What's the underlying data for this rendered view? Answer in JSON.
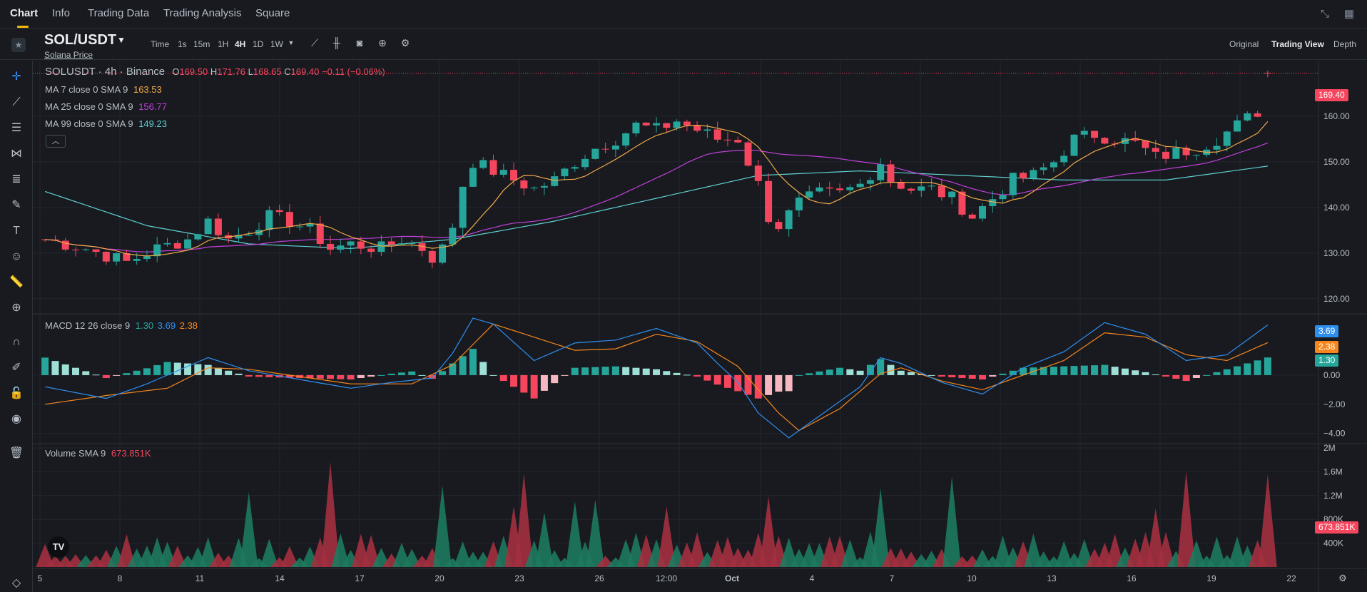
{
  "nav": {
    "tabs": [
      {
        "label": "Chart",
        "active": true
      },
      {
        "label": "Info",
        "active": false
      },
      {
        "label": "Trading Data",
        "active": false
      },
      {
        "label": "Trading Analysis",
        "active": false
      },
      {
        "label": "Square",
        "active": false
      }
    ],
    "icons": [
      "collapse-icon",
      "grid-layout-icon"
    ]
  },
  "header": {
    "pair": "SOL/USDT",
    "subtitle": "Solana Price",
    "timeframes": [
      {
        "label": "Time",
        "active": false
      },
      {
        "label": "1s",
        "active": false
      },
      {
        "label": "15m",
        "active": false
      },
      {
        "label": "1H",
        "active": false
      },
      {
        "label": "4H",
        "active": true
      },
      {
        "label": "1D",
        "active": false
      },
      {
        "label": "1W",
        "active": false
      }
    ],
    "views": [
      {
        "label": "Original",
        "active": false
      },
      {
        "label": "Trading View",
        "active": true
      },
      {
        "label": "Depth",
        "active": false
      }
    ]
  },
  "legend": {
    "symbol_line": "SOLUSDT · 4h · Binance",
    "ohlc": [
      {
        "key": "O",
        "value": "169.50"
      },
      {
        "key": "H",
        "value": "171.76"
      },
      {
        "key": "L",
        "value": "168.65"
      },
      {
        "key": "C",
        "value": "169.40"
      }
    ],
    "change": "−0.11 (−0.06%)",
    "ma": [
      {
        "label": "MA 7 close 0 SMA 9",
        "value": "163.53",
        "color": "#f0a848"
      },
      {
        "label": "MA 25 close 0 SMA 9",
        "value": "156.77",
        "color": "#c040d8"
      },
      {
        "label": "MA 99 close 0 SMA 9",
        "value": "149.23",
        "color": "#5fd0d0"
      }
    ],
    "macd_label": "MACD 12 26 close 9",
    "macd_values": [
      {
        "value": "1.30",
        "color": "#26a69a"
      },
      {
        "value": "3.69",
        "color": "#2f8ff0"
      },
      {
        "value": "2.38",
        "color": "#f7861c"
      }
    ],
    "volume_label": "Volume SMA 9",
    "volume_value": "673.851K"
  },
  "axes": {
    "price_ticks": [
      "160.00",
      "150.00",
      "140.00",
      "130.00",
      "120.00"
    ],
    "macd_ticks": [
      "0.00",
      "−2.00",
      "−4.00"
    ],
    "volume_ticks": [
      "2M",
      "1.6M",
      "1.2M",
      "800K",
      "400K"
    ],
    "time_ticks": [
      "5",
      "8",
      "11",
      "14",
      "17",
      "20",
      "23",
      "26",
      "12:00",
      "Oct",
      "4",
      "7",
      "10",
      "13",
      "16",
      "19",
      "22"
    ]
  },
  "badges": {
    "price": "169.40",
    "macd_signal": "3.69",
    "macd_line": "2.38",
    "macd_hist": "1.30",
    "volume": "673.851K"
  },
  "colors": {
    "up": "#26a69a",
    "down": "#f6465d",
    "accent": "#f0b90b"
  },
  "chart_data": {
    "type": "candlestick",
    "symbol": "SOLUSDT",
    "interval": "4h",
    "price_range": [
      117,
      172
    ],
    "close_path": [
      [
        0,
        133
      ],
      [
        4,
        131
      ],
      [
        8,
        128
      ],
      [
        11,
        131
      ],
      [
        14,
        133
      ],
      [
        16,
        137
      ],
      [
        18,
        133
      ],
      [
        20,
        135
      ],
      [
        22,
        138
      ],
      [
        24,
        137
      ],
      [
        26,
        135
      ],
      [
        28,
        131
      ],
      [
        30,
        132
      ],
      [
        33,
        131
      ],
      [
        35,
        133
      ],
      [
        37,
        131
      ],
      [
        38,
        129
      ],
      [
        39,
        131
      ],
      [
        40,
        136
      ],
      [
        41,
        145
      ],
      [
        42,
        150
      ],
      [
        44,
        148
      ],
      [
        46,
        146
      ],
      [
        48,
        144
      ],
      [
        50,
        146
      ],
      [
        52,
        150
      ],
      [
        54,
        153
      ],
      [
        56,
        155
      ],
      [
        58,
        158
      ],
      [
        60,
        157
      ],
      [
        62,
        159
      ],
      [
        64,
        157
      ],
      [
        66,
        155
      ],
      [
        68,
        155
      ],
      [
        69,
        150
      ],
      [
        70,
        145
      ],
      [
        71,
        138
      ],
      [
        72,
        136
      ],
      [
        74,
        141
      ],
      [
        76,
        143
      ],
      [
        78,
        143
      ],
      [
        80,
        145
      ],
      [
        82,
        150
      ],
      [
        83,
        146
      ],
      [
        85,
        144
      ],
      [
        87,
        144
      ],
      [
        89,
        142
      ],
      [
        91,
        138
      ],
      [
        93,
        142
      ],
      [
        95,
        146
      ],
      [
        97,
        147
      ],
      [
        99,
        150
      ],
      [
        101,
        155
      ],
      [
        103,
        156
      ],
      [
        105,
        155
      ],
      [
        107,
        154
      ],
      [
        109,
        151
      ],
      [
        111,
        152
      ],
      [
        113,
        153
      ],
      [
        115,
        155
      ],
      [
        117,
        158
      ],
      [
        119,
        161
      ],
      [
        120,
        167
      ],
      [
        120.5,
        169.4
      ]
    ],
    "ma7": 163.53,
    "ma25": 156.77,
    "ma99": 149.23,
    "ma99_path": [
      [
        0,
        143.5
      ],
      [
        10,
        136
      ],
      [
        20,
        132
      ],
      [
        30,
        131
      ],
      [
        40,
        133
      ],
      [
        50,
        137
      ],
      [
        60,
        142
      ],
      [
        70,
        147
      ],
      [
        80,
        148
      ],
      [
        90,
        147
      ],
      [
        100,
        146
      ],
      [
        110,
        146
      ],
      [
        120.5,
        149.2
      ]
    ],
    "macd_range": [
      -4.6,
      4.2
    ],
    "macd_line_path": [
      [
        0,
        -0.8
      ],
      [
        6,
        -1.6
      ],
      [
        10,
        -0.6
      ],
      [
        16,
        1.2
      ],
      [
        20,
        0.3
      ],
      [
        30,
        -0.9
      ],
      [
        34,
        -0.5
      ],
      [
        38,
        -0.2
      ],
      [
        40,
        1.5
      ],
      [
        42,
        3.9
      ],
      [
        44,
        3.5
      ],
      [
        48,
        1.0
      ],
      [
        52,
        2.2
      ],
      [
        56,
        2.4
      ],
      [
        60,
        3.2
      ],
      [
        64,
        2.2
      ],
      [
        66,
        0.8
      ],
      [
        68,
        -0.5
      ],
      [
        70,
        -2.6
      ],
      [
        73,
        -4.3
      ],
      [
        76,
        -2.8
      ],
      [
        80,
        -0.8
      ],
      [
        82,
        1.2
      ],
      [
        84,
        0.8
      ],
      [
        88,
        -0.5
      ],
      [
        92,
        -1.3
      ],
      [
        96,
        0.5
      ],
      [
        100,
        1.6
      ],
      [
        104,
        3.6
      ],
      [
        108,
        2.8
      ],
      [
        112,
        1.0
      ],
      [
        116,
        1.4
      ],
      [
        120.5,
        3.69
      ]
    ],
    "macd_signal_path": [
      [
        0,
        -2.0
      ],
      [
        6,
        -1.4
      ],
      [
        12,
        -0.9
      ],
      [
        16,
        0.5
      ],
      [
        20,
        0.4
      ],
      [
        30,
        -0.6
      ],
      [
        36,
        -0.6
      ],
      [
        40,
        0.7
      ],
      [
        44,
        3.5
      ],
      [
        48,
        2.6
      ],
      [
        52,
        1.7
      ],
      [
        56,
        1.8
      ],
      [
        60,
        2.8
      ],
      [
        64,
        2.3
      ],
      [
        68,
        0.6
      ],
      [
        72,
        -2.6
      ],
      [
        74,
        -3.8
      ],
      [
        78,
        -2.3
      ],
      [
        82,
        0.1
      ],
      [
        84,
        0.5
      ],
      [
        88,
        -0.4
      ],
      [
        92,
        -1.0
      ],
      [
        96,
        0.0
      ],
      [
        100,
        1.0
      ],
      [
        104,
        2.9
      ],
      [
        108,
        2.6
      ],
      [
        112,
        1.4
      ],
      [
        116,
        1.0
      ],
      [
        120.5,
        2.38
      ]
    ],
    "volume_range": [
      0,
      2000000
    ],
    "volume_sma9": 673851
  }
}
